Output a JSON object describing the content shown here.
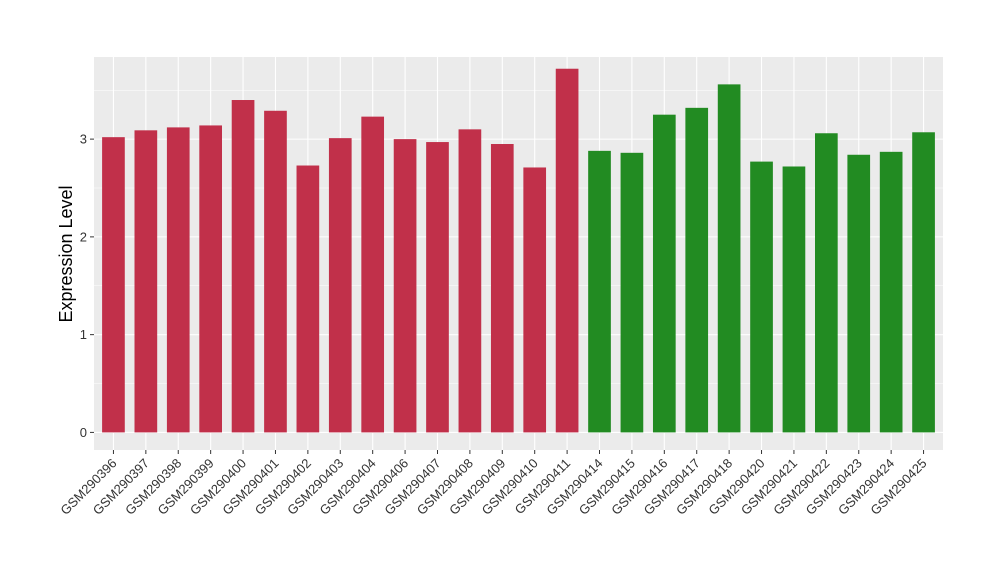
{
  "chart_data": {
    "type": "bar",
    "title": "",
    "xlabel": "",
    "ylabel": "Expression Level",
    "ylim": [
      -0.18,
      3.84
    ],
    "yticks": [
      0,
      1,
      2,
      3
    ],
    "grid": true,
    "legend": "none",
    "categories": [
      "GSM290396",
      "GSM290397",
      "GSM290398",
      "GSM290399",
      "GSM290400",
      "GSM290401",
      "GSM290402",
      "GSM290403",
      "GSM290404",
      "GSM290406",
      "GSM290407",
      "GSM290408",
      "GSM290409",
      "GSM290410",
      "GSM290411",
      "GSM290414",
      "GSM290415",
      "GSM290416",
      "GSM290417",
      "GSM290418",
      "GSM290420",
      "GSM290421",
      "GSM290422",
      "GSM290423",
      "GSM290424",
      "GSM290425"
    ],
    "values": [
      3.02,
      3.09,
      3.12,
      3.14,
      3.4,
      3.29,
      2.73,
      3.01,
      3.23,
      3.0,
      2.97,
      3.1,
      2.95,
      2.71,
      3.72,
      2.88,
      2.86,
      3.25,
      3.32,
      3.56,
      2.77,
      2.72,
      3.06,
      2.84,
      2.87,
      3.07
    ],
    "bar_colors": [
      "#c1304a",
      "#c1304a",
      "#c1304a",
      "#c1304a",
      "#c1304a",
      "#c1304a",
      "#c1304a",
      "#c1304a",
      "#c1304a",
      "#c1304a",
      "#c1304a",
      "#c1304a",
      "#c1304a",
      "#c1304a",
      "#c1304a",
      "#228b22",
      "#228b22",
      "#228b22",
      "#228b22",
      "#228b22",
      "#228b22",
      "#228b22",
      "#228b22",
      "#228b22",
      "#228b22",
      "#228b22"
    ],
    "panel_background": "#ebebeb",
    "grid_color": "#ffffff"
  }
}
